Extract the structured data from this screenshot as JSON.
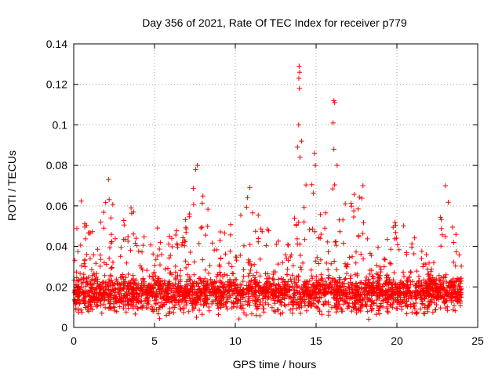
{
  "chart_data": {
    "type": "scatter",
    "title": "Day 356 of 2021, Rate Of TEC Index for receiver p779",
    "xlabel": "GPS time / hours",
    "ylabel": "ROTI / TECUs",
    "xlim": [
      0,
      25
    ],
    "ylim": [
      0,
      0.14
    ],
    "x_ticks": [
      {
        "value": 0,
        "label": "0"
      },
      {
        "value": 5,
        "label": "5"
      },
      {
        "value": 10,
        "label": "10"
      },
      {
        "value": 15,
        "label": "15"
      },
      {
        "value": 20,
        "label": "20"
      },
      {
        "value": 25,
        "label": "25"
      }
    ],
    "y_ticks": [
      {
        "value": 0,
        "label": "0"
      },
      {
        "value": 0.02,
        "label": "0.02"
      },
      {
        "value": 0.04,
        "label": "0.04"
      },
      {
        "value": 0.06,
        "label": "0.06"
      },
      {
        "value": 0.08,
        "label": "0.08"
      },
      {
        "value": 0.1,
        "label": "0.1"
      },
      {
        "value": 0.12,
        "label": "0.12"
      },
      {
        "value": 0.14,
        "label": "0.14"
      }
    ],
    "grid": true,
    "marker": "+",
    "series": [
      {
        "name": "ROTI",
        "color": "#ff0000",
        "baseline_mean": 0.017,
        "baseline_spread": 0.008,
        "x_range": [
          0,
          24
        ],
        "density_points": 9000,
        "envelope_max": [
          [
            0.0,
            0.045
          ],
          [
            0.5,
            0.067
          ],
          [
            1.0,
            0.052
          ],
          [
            1.5,
            0.052
          ],
          [
            2.2,
            0.073
          ],
          [
            2.8,
            0.053
          ],
          [
            3.5,
            0.062
          ],
          [
            4.3,
            0.048
          ],
          [
            4.8,
            0.056
          ],
          [
            5.5,
            0.045
          ],
          [
            6.5,
            0.05
          ],
          [
            7.0,
            0.055
          ],
          [
            7.5,
            0.08
          ],
          [
            8.5,
            0.055
          ],
          [
            9.5,
            0.05
          ],
          [
            10.0,
            0.052
          ],
          [
            10.8,
            0.07
          ],
          [
            11.5,
            0.055
          ],
          [
            12.5,
            0.05
          ],
          [
            13.5,
            0.04
          ],
          [
            14.0,
            0.09
          ],
          [
            14.5,
            0.085
          ],
          [
            15.0,
            0.06
          ],
          [
            15.5,
            0.06
          ],
          [
            16.0,
            0.09
          ],
          [
            16.5,
            0.07
          ],
          [
            17.0,
            0.065
          ],
          [
            17.8,
            0.07
          ],
          [
            18.5,
            0.055
          ],
          [
            19.2,
            0.04
          ],
          [
            20.0,
            0.056
          ],
          [
            20.5,
            0.05
          ],
          [
            21.0,
            0.05
          ],
          [
            22.0,
            0.04
          ],
          [
            22.5,
            0.045
          ],
          [
            23.0,
            0.07
          ],
          [
            23.5,
            0.056
          ],
          [
            24.0,
            0.035
          ]
        ],
        "outliers": [
          {
            "x": 13.95,
            "y": 0.129
          },
          {
            "x": 13.98,
            "y": 0.126
          },
          {
            "x": 13.93,
            "y": 0.123
          },
          {
            "x": 13.97,
            "y": 0.118
          },
          {
            "x": 13.92,
            "y": 0.1
          },
          {
            "x": 14.1,
            "y": 0.092
          },
          {
            "x": 13.85,
            "y": 0.089
          },
          {
            "x": 14.0,
            "y": 0.084
          },
          {
            "x": 16.1,
            "y": 0.112
          },
          {
            "x": 16.15,
            "y": 0.111
          },
          {
            "x": 16.05,
            "y": 0.101
          },
          {
            "x": 16.1,
            "y": 0.088
          },
          {
            "x": 16.3,
            "y": 0.08
          },
          {
            "x": 14.9,
            "y": 0.086
          },
          {
            "x": 14.95,
            "y": 0.08
          },
          {
            "x": 7.65,
            "y": 0.08
          },
          {
            "x": 7.55,
            "y": 0.078
          },
          {
            "x": 2.15,
            "y": 0.073
          },
          {
            "x": 23.0,
            "y": 0.07
          },
          {
            "x": 10.9,
            "y": 0.069
          },
          {
            "x": 17.9,
            "y": 0.07
          }
        ]
      }
    ]
  }
}
